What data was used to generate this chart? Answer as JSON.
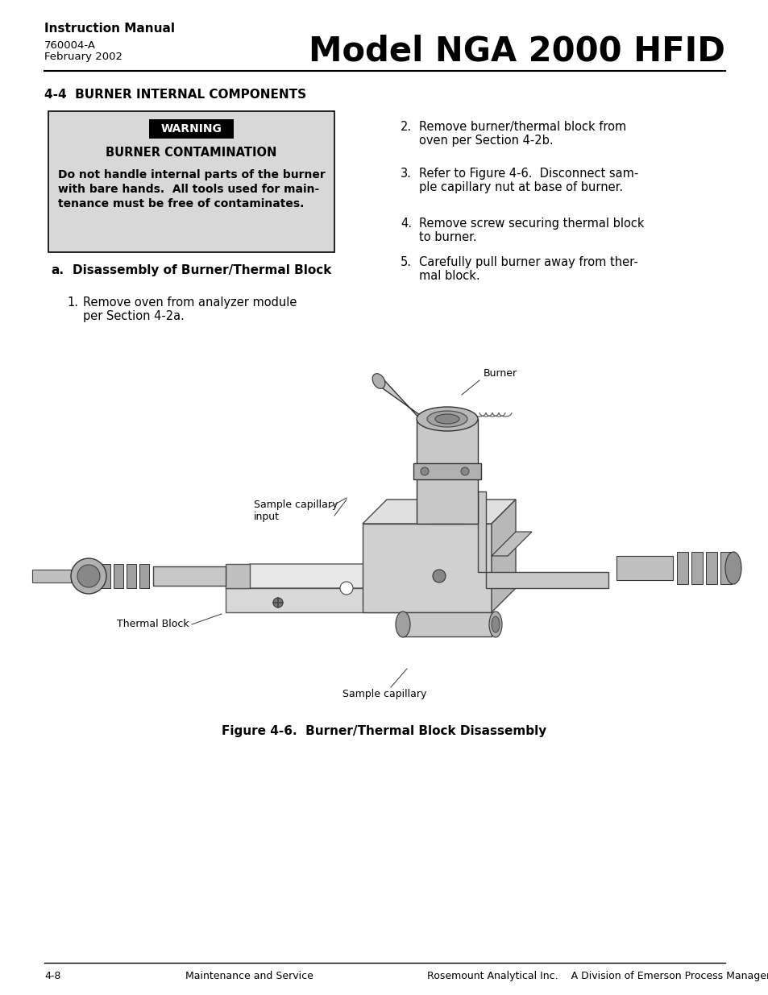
{
  "page_width": 9.54,
  "page_height": 12.35,
  "bg_color": "#ffffff",
  "header_title_bold": "Instruction Manual",
  "header_sub1": "760004-A",
  "header_sub2": "February 2002",
  "header_right": "Model NGA 2000 HFID",
  "section_title": "4-4  BURNER INTERNAL COMPONENTS",
  "warning_title": "BURNER CONTAMINATION",
  "warning_body_line1": "Do not handle internal parts of the burner",
  "warning_body_line2": "with bare hands.  All tools used for main-",
  "warning_body_line3": "tenance must be free of contaminates.",
  "step1_num": "1.",
  "step1_text": "Remove oven from analyzer module\nper Section 4-2a.",
  "step2_num": "2.",
  "step2_text": "Remove burner/thermal block from\noven per Section 4-2b.",
  "step3_num": "3.",
  "step3_text": "Refer to Figure 4-6.  Disconnect sam-\nple capillary nut at base of burner.",
  "step4_num": "4.",
  "step4_text": "Remove screw securing thermal block\nto burner.",
  "step5_num": "5.",
  "step5_text": "Carefully pull burner away from ther-\nmal block.",
  "figure_caption": "Figure 4-6.  Burner/Thermal Block Disassembly",
  "footer_left": "4-8",
  "footer_mid": "Maintenance and Service",
  "footer_right": "Rosemount Analytical Inc.    A Division of Emerson Process Management",
  "label_burner": "Burner",
  "label_sample_capillary_input": "Sample capillary\ninput",
  "label_thermal_block": "Thermal Block",
  "label_sample_capillary": "Sample capillary"
}
